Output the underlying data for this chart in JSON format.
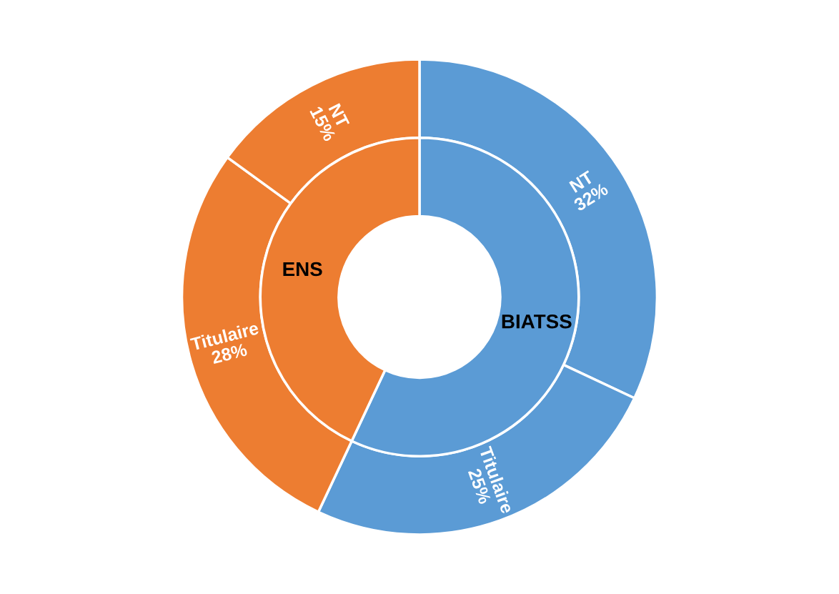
{
  "chart_data": {
    "type": "donut",
    "categories": [
      "NT",
      "Titulaire",
      "Titulaire",
      "NT"
    ],
    "series": [
      {
        "values": [
          32,
          25,
          28,
          15
        ],
        "colors": [
          "#5b9bd5",
          "#5b9bd5",
          "#ed7d31",
          "#ed7d31"
        ],
        "value_labels": [
          "32%",
          "25%",
          "28%",
          "15%"
        ]
      },
      {
        "values": [
          57,
          null,
          43,
          null
        ],
        "colors": [
          "#5b9bd5",
          null,
          "#ed7d31",
          null
        ]
      }
    ],
    "annotations": [
      "BIATSS",
      "ENS"
    ]
  }
}
